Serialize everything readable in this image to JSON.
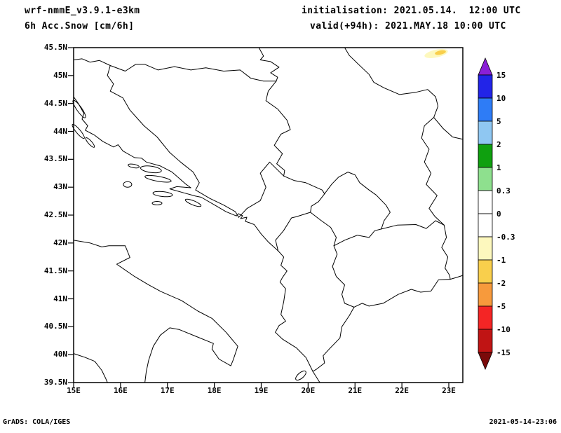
{
  "header": {
    "model": "wrf-nmmE_v3.9.1-e3km",
    "variable": "6h Acc.Snow [cm/6h]",
    "initialisation": "initialisation: 2021.05.14.  12:00 UTC",
    "valid": "valid(+94h): 2021.MAY.18 10:00 UTC"
  },
  "footer": {
    "left": "GrADS: COLA/IGES",
    "right": "2021-05-14-23:06"
  },
  "map": {
    "lat_ticks": [
      "45.5N",
      "45N",
      "44.5N",
      "44N",
      "43.5N",
      "43N",
      "42.5N",
      "42N",
      "41.5N",
      "41N",
      "40.5N",
      "40N",
      "39.5N"
    ],
    "lon_ticks": [
      "15E",
      "16E",
      "17E",
      "18E",
      "19E",
      "20E",
      "21E",
      "22E",
      "23E"
    ],
    "line_color": "#000000",
    "background": "#ffffff"
  },
  "colorbar": {
    "labels": [
      "15",
      "10",
      "5",
      "2",
      "1",
      "0.3",
      "0",
      "-0.3",
      "-1",
      "-2",
      "-5",
      "-10",
      "-15"
    ],
    "segment_colors": [
      "#2224E8",
      "#2E7CF6",
      "#8FC7F2",
      "#0FA00F",
      "#8EE08E",
      "#FFFFFF",
      "#FFFFFF",
      "#FDF8BE",
      "#F9CF4C",
      "#F79A3C",
      "#F42525",
      "#C01414"
    ],
    "arrow_top_color": "#8A1FD7",
    "arrow_bottom_color": "#7A0A0A"
  },
  "shaded_field": {
    "outer_color": "#FDF8BE",
    "core_color": "#F9CF4C"
  },
  "chart_data": {
    "type": "heatmap",
    "title": "6h Acc.Snow [cm/6h]",
    "x_axis": {
      "label": "longitude",
      "tick_values_degE": [
        15,
        16,
        17,
        18,
        19,
        20,
        21,
        22,
        23
      ],
      "range_degE": [
        15,
        23.3
      ]
    },
    "y_axis": {
      "label": "latitude",
      "tick_values_degN": [
        45.5,
        45,
        44.5,
        44,
        43.5,
        43,
        42.5,
        42,
        41.5,
        41,
        40.5,
        40,
        39.5
      ],
      "range_degN": [
        39.5,
        45.5
      ]
    },
    "legend": {
      "position": "right",
      "levels_cm_per_6h": [
        15,
        10,
        5,
        2,
        1,
        0.3,
        0,
        -0.3,
        -1,
        -2,
        -5,
        -10,
        -15
      ]
    },
    "shaded_features": [
      {
        "approx_lon_degE": 22.7,
        "approx_lat_degN": 45.4,
        "value_cm": "-1 to -0.3",
        "color": "#FDF8BE"
      },
      {
        "approx_lon_degE": 22.75,
        "approx_lat_degN": 45.41,
        "value_cm": "-2 to -1",
        "color": "#F9CF4C"
      }
    ],
    "background_value": "0 (white everywhere else)"
  }
}
